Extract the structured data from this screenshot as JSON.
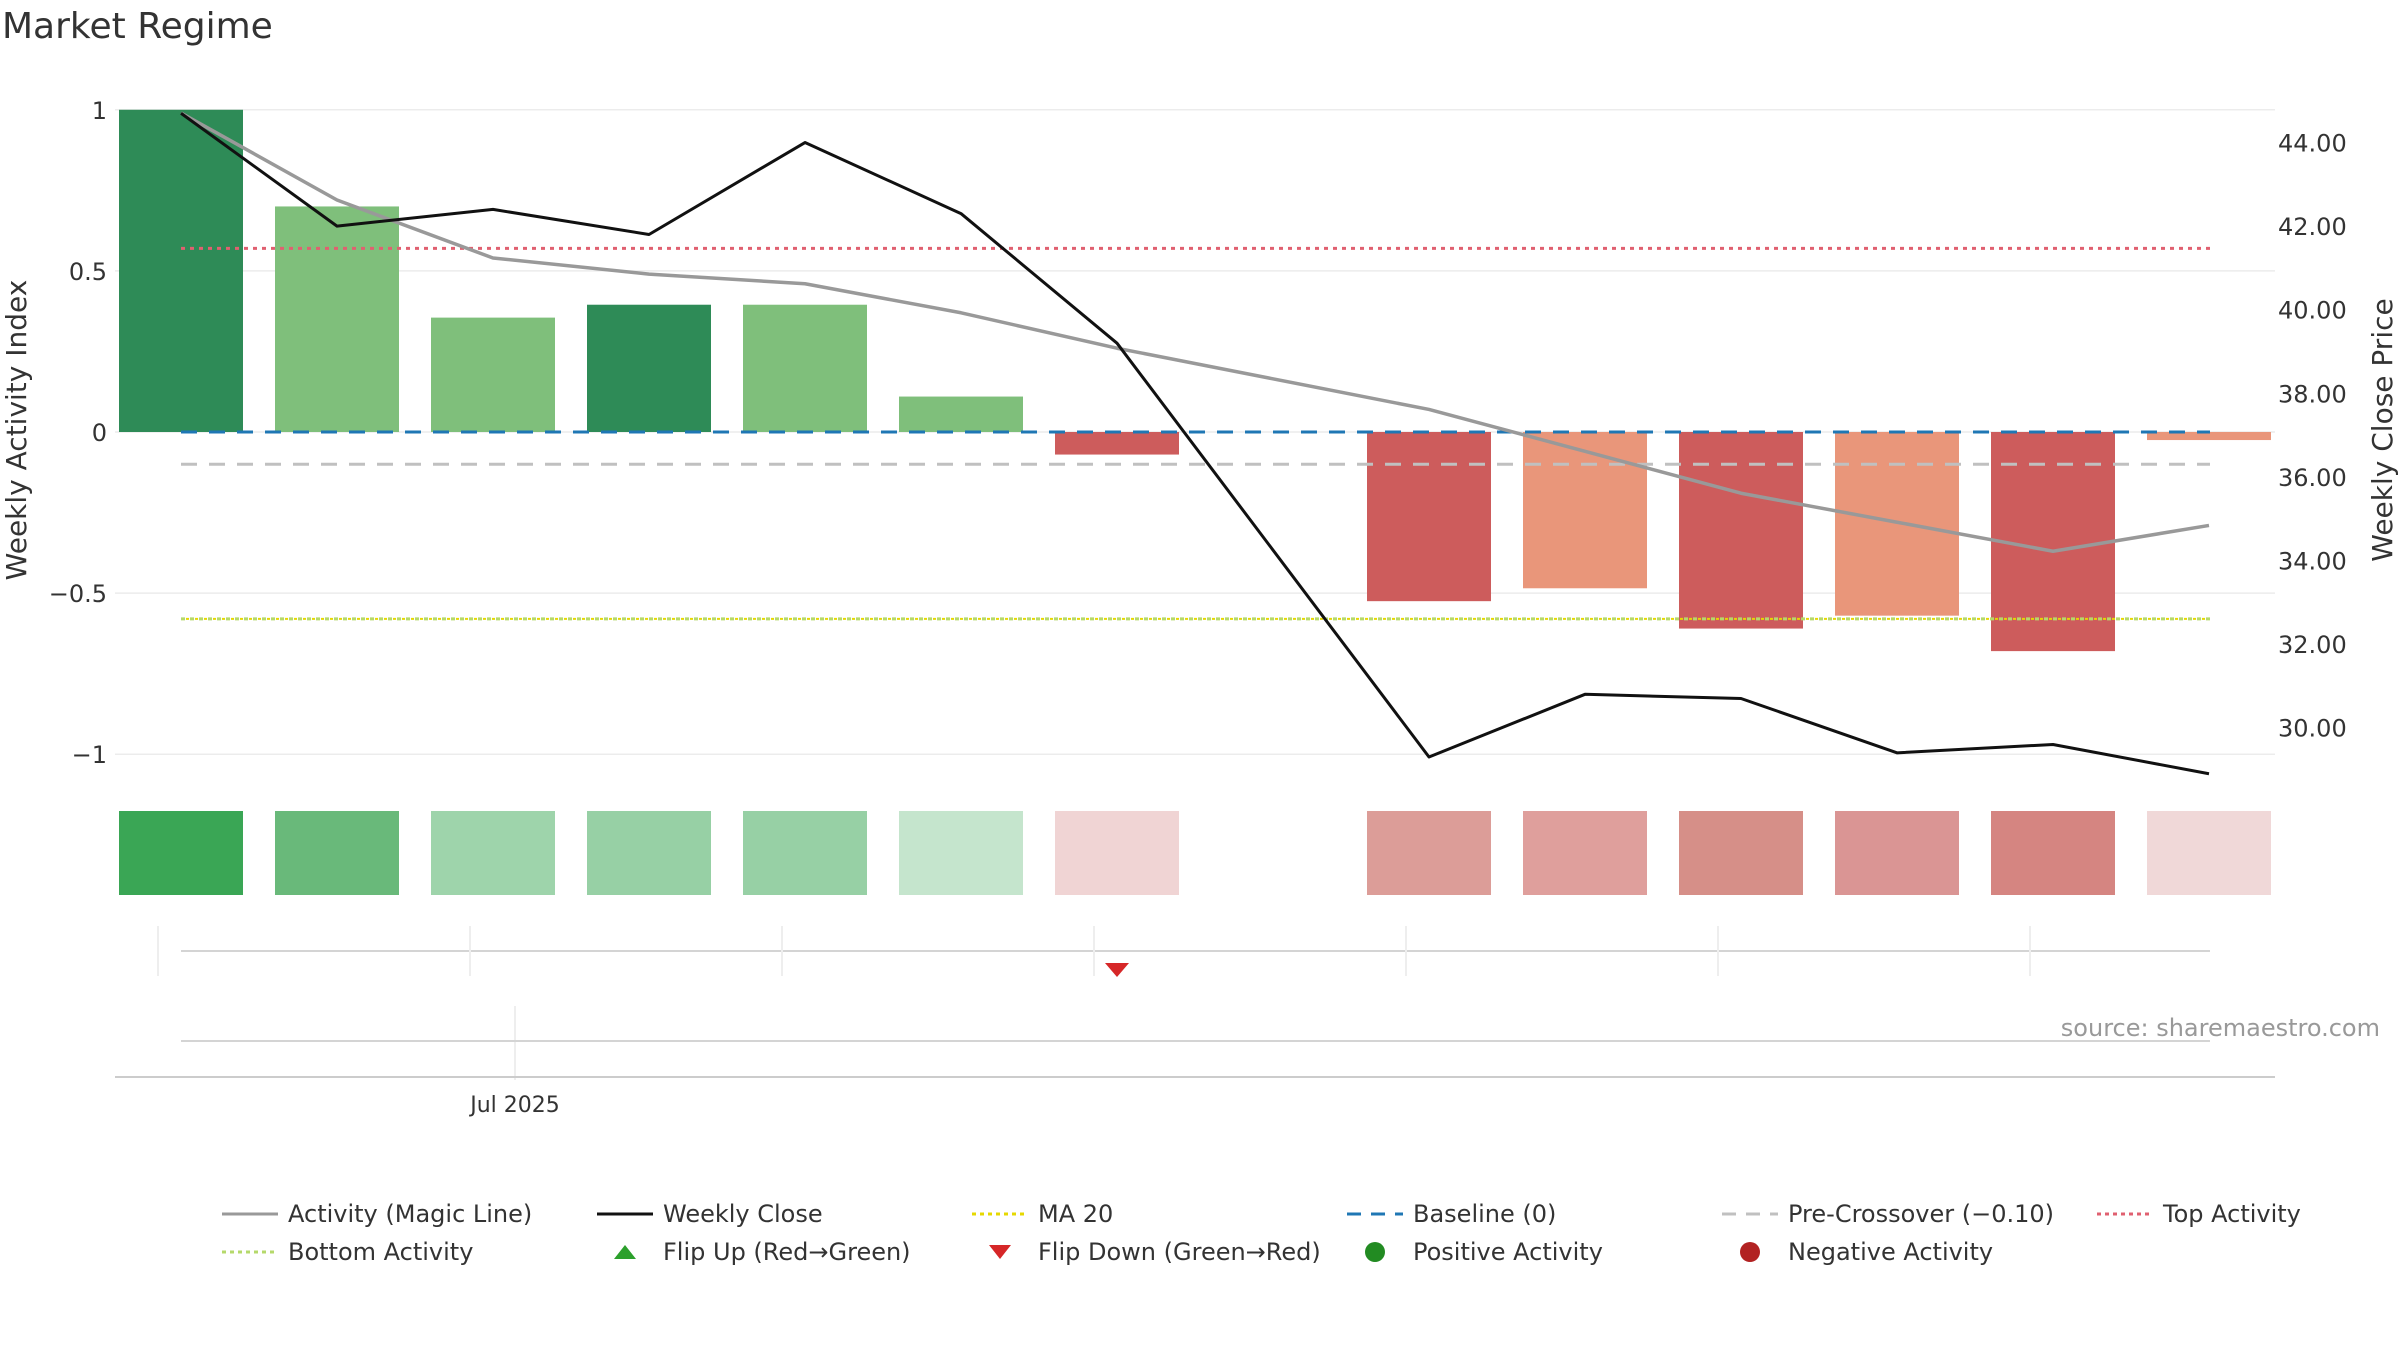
{
  "title": "Market Regime",
  "source": "source: sharemaestro.com",
  "colors": {
    "strong_green": "#2e8b57",
    "light_green": "#7fbf7b",
    "strong_red": "#cd5c5c",
    "light_red": "#e9967a",
    "magic_line": "#999999",
    "weekly_close": "#111111",
    "ma20": "#e6d800",
    "baseline": "#1f77b4",
    "pre_crossover": "#c0c0c0",
    "top_activity": "#e06070",
    "bottom_activity": "#b5d96b",
    "flip_down": "#d62728",
    "flip_up": "#2ca02c",
    "positive_dot": "#228b22",
    "negative_dot": "#b22222"
  },
  "chart_data": {
    "type": "bar",
    "ylabel": "Weekly Activity Index",
    "y2label": "Weekly Close Price",
    "ylim": [
      -1.08,
      1.08
    ],
    "y2lim": [
      28.75,
      45.4
    ],
    "yticks": [
      {
        "v": 1,
        "label": "1"
      },
      {
        "v": 0.5,
        "label": "0.5"
      },
      {
        "v": 0,
        "label": "0"
      },
      {
        "v": -0.5,
        "label": "−0.5"
      },
      {
        "v": -1,
        "label": "−1"
      }
    ],
    "y2ticks": [
      {
        "v": 44,
        "label": "44.00"
      },
      {
        "v": 42,
        "label": "42.00"
      },
      {
        "v": 40,
        "label": "40.00"
      },
      {
        "v": 38,
        "label": "38.00"
      },
      {
        "v": 36,
        "label": "36.00"
      },
      {
        "v": 34,
        "label": "34.00"
      },
      {
        "v": 32,
        "label": "32.00"
      },
      {
        "v": 30,
        "label": "30.00"
      }
    ],
    "xtick_label": "Jul 2025",
    "weeks": 14,
    "activity": [
      1.0,
      0.7,
      0.355,
      0.395,
      0.395,
      0.11,
      -0.07,
      null,
      -0.525,
      -0.485,
      -0.61,
      -0.57,
      -0.68,
      -0.025
    ],
    "bar_shade": [
      "strong",
      "light",
      "light",
      "strong",
      "light",
      "light",
      "strong",
      null,
      "strong",
      "light",
      "strong",
      "light",
      "strong",
      "light"
    ],
    "magic_line": [
      0.99,
      0.72,
      0.54,
      0.49,
      0.46,
      0.37,
      0.26,
      null,
      0.07,
      -0.06,
      -0.19,
      -0.28,
      -0.37,
      -0.29
    ],
    "weekly_close": [
      44.7,
      42.0,
      42.4,
      41.8,
      44.0,
      42.3,
      39.2,
      null,
      29.3,
      30.8,
      30.7,
      29.4,
      29.6,
      28.9
    ],
    "baseline": 0,
    "pre_crossover": -0.1,
    "top_activity": 0.57,
    "bottom_activity": -0.58,
    "ma20": -0.58,
    "heat_strip": [
      "#3aa655",
      "#69b97a",
      "#9ed4ab",
      "#97d0a5",
      "#97d0a5",
      "#c5e5cd",
      "#f0d4d4",
      null,
      "#dc9d98",
      "#df9f9c",
      "#d68f88",
      "#da9594",
      "#d58581",
      "#f0d8d8"
    ],
    "flip_down_weeks": [
      6
    ],
    "flip_up_weeks": []
  },
  "legend": [
    {
      "label": "Activity (Magic Line)",
      "kind": "line",
      "color": "#999999",
      "dash": ""
    },
    {
      "label": "Weekly Close",
      "kind": "line",
      "color": "#111111",
      "dash": ""
    },
    {
      "label": "MA 20",
      "kind": "line",
      "color": "#e6d800",
      "dash": "4,4"
    },
    {
      "label": "Baseline (0)",
      "kind": "line",
      "color": "#1f77b4",
      "dash": "14,10"
    },
    {
      "label": "Pre-Crossover (−0.10)",
      "kind": "line",
      "color": "#c0c0c0",
      "dash": "14,10"
    },
    {
      "label": "Top Activity",
      "kind": "line",
      "color": "#e06070",
      "dash": "4,4"
    },
    {
      "label": "Bottom Activity",
      "kind": "line",
      "color": "#b5d96b",
      "dash": "4,4"
    },
    {
      "label": "Flip Up (Red→Green)",
      "kind": "tri-up",
      "color": "#2ca02c",
      "dash": ""
    },
    {
      "label": "Flip Down (Green→Red)",
      "kind": "tri-down",
      "color": "#d62728",
      "dash": ""
    },
    {
      "label": "Positive Activity",
      "kind": "dot",
      "color": "#228b22",
      "dash": ""
    },
    {
      "label": "Negative Activity",
      "kind": "dot",
      "color": "#b22222",
      "dash": ""
    }
  ]
}
